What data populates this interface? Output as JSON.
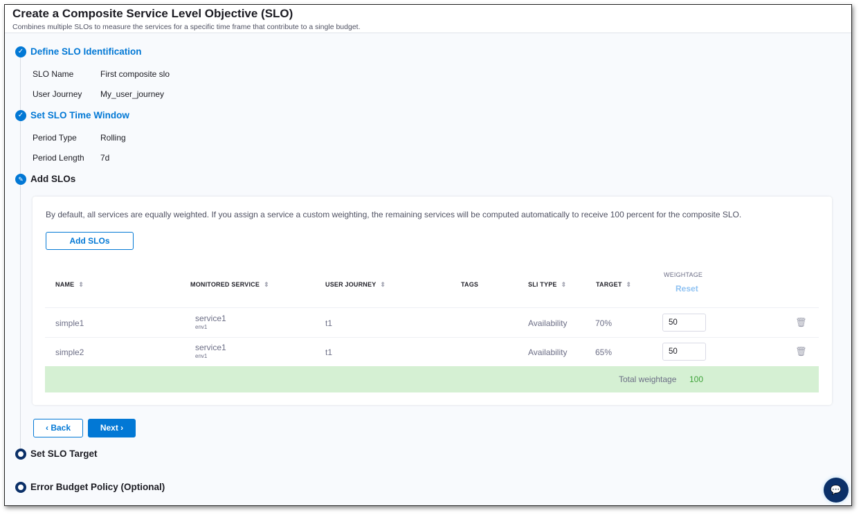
{
  "header": {
    "title": "Create a Composite Service Level Objective (SLO)",
    "subtitle": "Combines multiple SLOs to measure the services for a specific time frame that contribute to a single budget."
  },
  "steps": [
    {
      "title": "Define SLO Identification",
      "status": "completed",
      "fields": [
        {
          "label": "SLO Name",
          "value": "First composite slo"
        },
        {
          "label": "User Journey",
          "value": "My_user_journey"
        }
      ]
    },
    {
      "title": "Set SLO Time Window",
      "status": "completed",
      "fields": [
        {
          "label": "Period Type",
          "value": "Rolling"
        },
        {
          "label": "Period Length",
          "value": "7d"
        }
      ]
    },
    {
      "title": "Add SLOs",
      "status": "in-progress"
    },
    {
      "title": "Set SLO Target",
      "status": "pending"
    },
    {
      "title": "Error Budget Policy (Optional)",
      "status": "pending"
    }
  ],
  "add_slos": {
    "info": "By default, all services are equally weighted. If you assign a service a custom weighting, the remaining services will be computed automatically to receive 100 percent for the composite SLO.",
    "add_button": "Add SLOs",
    "columns": {
      "name": "NAME",
      "service": "MONITORED SERVICE",
      "journey": "USER JOURNEY",
      "tags": "TAGS",
      "sli": "SLI TYPE",
      "target": "TARGET",
      "weightage": "WEIGHTAGE",
      "reset": "Reset"
    },
    "rows": [
      {
        "name": "simple1",
        "service": "service1",
        "env": "env1",
        "journey": "t1",
        "tags": "",
        "sli": "Availability",
        "target": "70%",
        "weightage": "50"
      },
      {
        "name": "simple2",
        "service": "service1",
        "env": "env1",
        "journey": "t1",
        "tags": "",
        "sli": "Availability",
        "target": "65%",
        "weightage": "50"
      }
    ],
    "total_label": "Total weightage",
    "total_value": "100"
  },
  "nav": {
    "back": "Back",
    "next": "Next"
  },
  "colors": {
    "accent": "#0278d5",
    "pending": "#0b3068",
    "total_bg": "#d5f0d3",
    "total_value": "#3fa33a"
  }
}
